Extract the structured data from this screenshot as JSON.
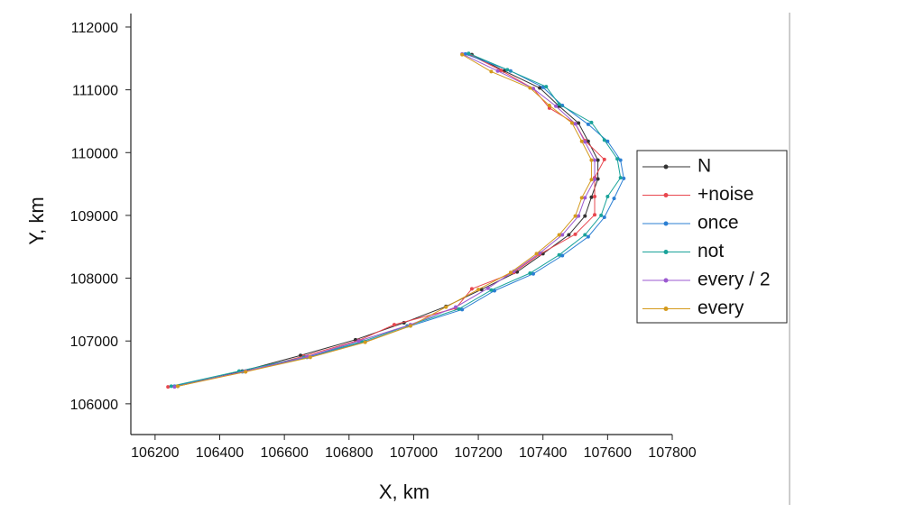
{
  "chart_data": {
    "type": "line",
    "x_label": "X, km",
    "y_label": "Y, km",
    "xlim": [
      106125,
      107800
    ],
    "xticks": [
      106200,
      106400,
      106600,
      106800,
      107000,
      107200,
      107400,
      107600,
      107800
    ],
    "ylim": [
      105510,
      112215
    ],
    "yticks": [
      106000,
      107000,
      108000,
      109000,
      110000,
      111000,
      112000
    ],
    "legend": "right",
    "series": [
      {
        "name": "N",
        "color": "#333333",
        "x": [
          107180,
          107280,
          107390,
          107450,
          107510,
          107540,
          107570,
          107570,
          107550,
          107530,
          107480,
          107400,
          107320,
          107210,
          107100,
          106970,
          106820,
          106650,
          106470,
          106270
        ],
        "y": [
          111560,
          111300,
          111030,
          110740,
          110470,
          110180,
          109880,
          109580,
          109290,
          108990,
          108690,
          108390,
          108100,
          107820,
          107550,
          107290,
          107020,
          106770,
          106520,
          106280
        ]
      },
      {
        "name": "+noise",
        "color": "#e8474f",
        "x": [
          107170,
          107270,
          107370,
          107420,
          107500,
          107530,
          107590,
          107560,
          107560,
          107560,
          107500,
          107390,
          107310,
          107180,
          107130,
          106940,
          106830,
          106660,
          106480,
          106240
        ],
        "y": [
          111570,
          111310,
          111020,
          110710,
          110460,
          110190,
          109890,
          109600,
          109300,
          109010,
          108700,
          108380,
          108090,
          107830,
          107520,
          107260,
          107010,
          106760,
          106510,
          106270
        ]
      },
      {
        "name": "once",
        "color": "#2b7fd3",
        "x": [
          107160,
          107300,
          107400,
          107460,
          107540,
          107600,
          107640,
          107650,
          107620,
          107590,
          107540,
          107460,
          107370,
          107250,
          107150,
          106990,
          106850,
          106670,
          106470,
          106260
        ],
        "y": [
          111570,
          111300,
          111040,
          110750,
          110450,
          110180,
          109880,
          109590,
          109270,
          108970,
          108660,
          108360,
          108070,
          107800,
          107500,
          107240,
          106990,
          106740,
          106510,
          106280
        ]
      },
      {
        "name": "not",
        "color": "#1aa39a",
        "x": [
          107170,
          107290,
          107410,
          107450,
          107550,
          107590,
          107630,
          107640,
          107600,
          107580,
          107530,
          107450,
          107360,
          107240,
          107140,
          106980,
          106840,
          106660,
          106460,
          106250
        ],
        "y": [
          111580,
          111320,
          111050,
          110770,
          110480,
          110200,
          109900,
          109600,
          109300,
          109000,
          108690,
          108370,
          108080,
          107810,
          107510,
          107240,
          106990,
          106740,
          106520,
          106280
        ]
      },
      {
        "name": "every / 2",
        "color": "#9b59d0",
        "x": [
          107150,
          107260,
          107370,
          107440,
          107500,
          107530,
          107560,
          107560,
          107530,
          107510,
          107460,
          107390,
          107310,
          107230,
          107130,
          106990,
          106830,
          106670,
          106480,
          106260
        ],
        "y": [
          111570,
          111300,
          111020,
          110740,
          110460,
          110170,
          109880,
          109570,
          109280,
          108990,
          108690,
          108400,
          108110,
          107840,
          107540,
          107260,
          107000,
          106750,
          106520,
          106270
        ]
      },
      {
        "name": "every",
        "color": "#d49a1c",
        "x": [
          107150,
          107240,
          107360,
          107420,
          107490,
          107520,
          107550,
          107550,
          107520,
          107500,
          107450,
          107380,
          107300,
          107200,
          107100,
          106990,
          106850,
          106680,
          106480,
          106270
        ],
        "y": [
          111560,
          111290,
          111030,
          110750,
          110470,
          110180,
          109880,
          109570,
          109280,
          108990,
          108690,
          108390,
          108090,
          107820,
          107540,
          107240,
          106980,
          106740,
          106510,
          106280
        ]
      }
    ]
  }
}
